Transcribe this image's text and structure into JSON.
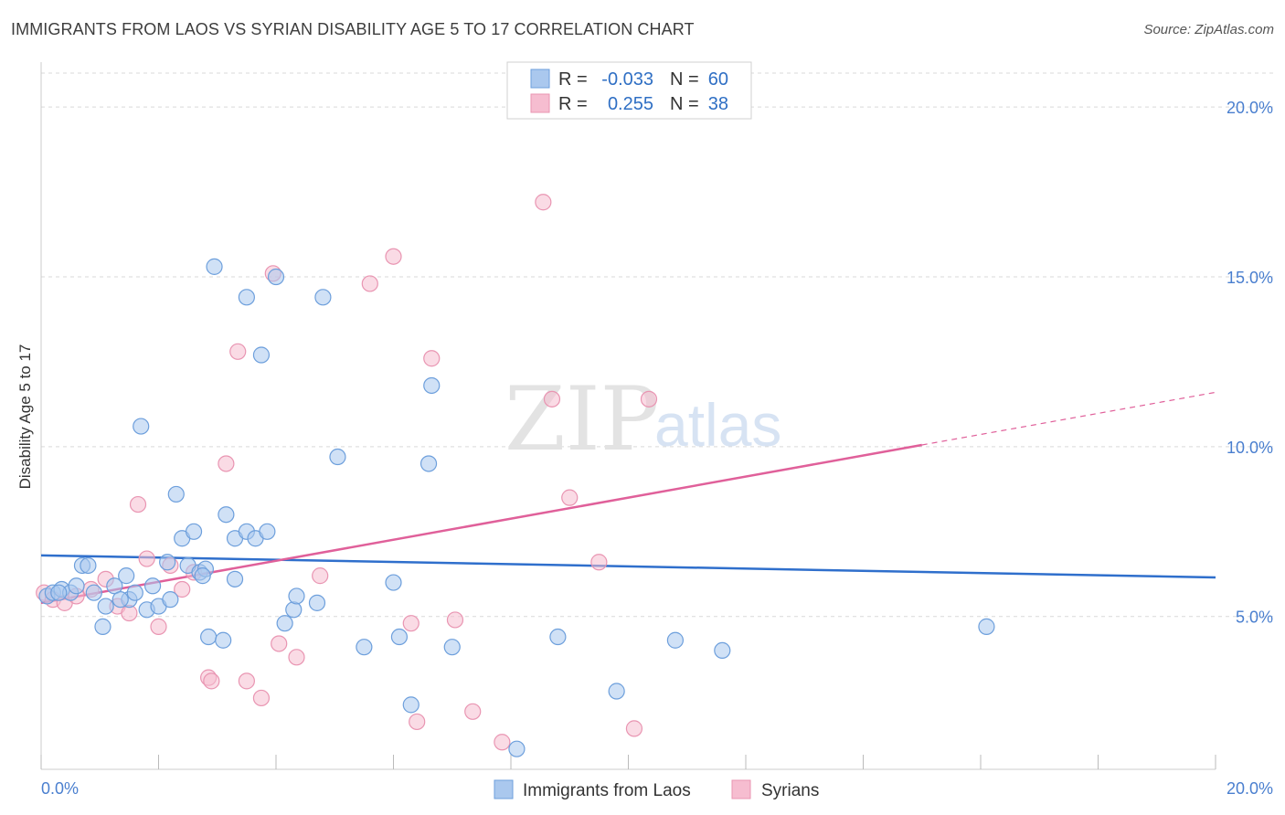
{
  "title": "IMMIGRANTS FROM LAOS VS SYRIAN DISABILITY AGE 5 TO 17 CORRELATION CHART",
  "source": "Source: ZipAtlas.com",
  "watermark": {
    "zip": "ZIP",
    "atlas": "atlas"
  },
  "legend_box": {
    "rows": [
      {
        "r_label": "R =",
        "r_value": "-0.033",
        "n_label": "N =",
        "n_value": "60"
      },
      {
        "r_label": "R =",
        "r_value": "0.255",
        "n_label": "N =",
        "n_value": "38"
      }
    ]
  },
  "colors": {
    "blue_fill": "#aac8ee",
    "blue_stroke": "#6d9fdc",
    "blue_line": "#2f6fcc",
    "pink_fill": "#f6bdd0",
    "pink_stroke": "#e995b2",
    "pink_line": "#e0609a",
    "grid": "#d9d9d9",
    "tick_text": "#4a7fcf"
  },
  "chart_data": {
    "type": "scatter",
    "title": "IMMIGRANTS FROM LAOS VS SYRIAN DISABILITY AGE 5 TO 17 CORRELATION CHART",
    "xlabel": "",
    "ylabel": "Disability Age 5 to 17",
    "xlim": [
      0,
      20
    ],
    "ylim": [
      0.5,
      21
    ],
    "x_tick_labels": [
      "0.0%",
      "20.0%"
    ],
    "y_ticks": [
      5,
      10,
      15,
      20
    ],
    "y_tick_labels": [
      "5.0%",
      "10.0%",
      "15.0%",
      "20.0%"
    ],
    "grid": true,
    "legend_position": "bottom-center",
    "series": [
      {
        "name": "Immigrants from Laos",
        "color": "blue",
        "r": -0.033,
        "n": 60,
        "trend": {
          "x": [
            0,
            20
          ],
          "y": [
            6.8,
            6.15
          ],
          "dashed_from": null
        },
        "points": [
          [
            0.1,
            5.6
          ],
          [
            0.2,
            5.7
          ],
          [
            0.35,
            5.8
          ],
          [
            0.5,
            5.7
          ],
          [
            0.6,
            5.9
          ],
          [
            0.7,
            6.5
          ],
          [
            0.8,
            6.5
          ],
          [
            0.9,
            5.7
          ],
          [
            1.05,
            4.7
          ],
          [
            1.1,
            5.3
          ],
          [
            1.25,
            5.9
          ],
          [
            1.45,
            6.2
          ],
          [
            1.5,
            5.5
          ],
          [
            1.6,
            5.7
          ],
          [
            1.7,
            10.6
          ],
          [
            1.8,
            5.2
          ],
          [
            1.9,
            5.9
          ],
          [
            2.0,
            5.3
          ],
          [
            2.15,
            6.6
          ],
          [
            2.2,
            5.5
          ],
          [
            2.3,
            8.6
          ],
          [
            2.4,
            7.3
          ],
          [
            2.5,
            6.5
          ],
          [
            2.6,
            7.5
          ],
          [
            2.7,
            6.3
          ],
          [
            2.8,
            6.4
          ],
          [
            2.85,
            4.4
          ],
          [
            2.95,
            15.3
          ],
          [
            3.1,
            4.3
          ],
          [
            3.15,
            8.0
          ],
          [
            3.3,
            6.1
          ],
          [
            3.3,
            7.3
          ],
          [
            3.5,
            7.5
          ],
          [
            3.5,
            14.4
          ],
          [
            3.65,
            7.3
          ],
          [
            3.75,
            12.7
          ],
          [
            3.85,
            7.5
          ],
          [
            4.0,
            15.0
          ],
          [
            4.15,
            4.8
          ],
          [
            4.3,
            5.2
          ],
          [
            4.35,
            5.6
          ],
          [
            4.7,
            5.4
          ],
          [
            4.8,
            14.4
          ],
          [
            5.05,
            9.7
          ],
          [
            5.5,
            4.1
          ],
          [
            6.0,
            6.0
          ],
          [
            6.1,
            4.4
          ],
          [
            6.3,
            2.4
          ],
          [
            6.6,
            9.5
          ],
          [
            6.65,
            11.8
          ],
          [
            7.0,
            4.1
          ],
          [
            8.1,
            1.1
          ],
          [
            8.8,
            4.4
          ],
          [
            9.8,
            2.8
          ],
          [
            10.8,
            4.3
          ],
          [
            11.6,
            4.0
          ],
          [
            16.1,
            4.7
          ],
          [
            0.3,
            5.7
          ],
          [
            1.35,
            5.5
          ],
          [
            2.75,
            6.2
          ]
        ]
      },
      {
        "name": "Syrians",
        "color": "pink",
        "r": 0.255,
        "n": 38,
        "trend": {
          "x": [
            0,
            20
          ],
          "y": [
            5.4,
            11.6
          ],
          "dashed_from": 15
        },
        "points": [
          [
            0.05,
            5.7
          ],
          [
            0.2,
            5.5
          ],
          [
            0.4,
            5.4
          ],
          [
            0.6,
            5.6
          ],
          [
            0.85,
            5.8
          ],
          [
            1.1,
            6.1
          ],
          [
            1.3,
            5.3
          ],
          [
            1.5,
            5.1
          ],
          [
            1.65,
            8.3
          ],
          [
            1.8,
            6.7
          ],
          [
            2.0,
            4.7
          ],
          [
            2.2,
            6.5
          ],
          [
            2.4,
            5.8
          ],
          [
            2.6,
            6.3
          ],
          [
            2.85,
            3.2
          ],
          [
            2.9,
            3.1
          ],
          [
            3.15,
            9.5
          ],
          [
            3.35,
            12.8
          ],
          [
            3.5,
            3.1
          ],
          [
            3.75,
            2.6
          ],
          [
            3.95,
            15.1
          ],
          [
            4.05,
            4.2
          ],
          [
            4.35,
            3.8
          ],
          [
            4.75,
            6.2
          ],
          [
            5.6,
            14.8
          ],
          [
            6.0,
            15.6
          ],
          [
            6.3,
            4.8
          ],
          [
            6.4,
            1.9
          ],
          [
            6.65,
            12.6
          ],
          [
            7.05,
            4.9
          ],
          [
            7.35,
            2.2
          ],
          [
            7.85,
            1.3
          ],
          [
            8.55,
            17.2
          ],
          [
            8.7,
            11.4
          ],
          [
            9.0,
            8.5
          ],
          [
            9.5,
            6.6
          ],
          [
            10.1,
            1.7
          ],
          [
            10.35,
            11.4
          ]
        ]
      }
    ]
  }
}
